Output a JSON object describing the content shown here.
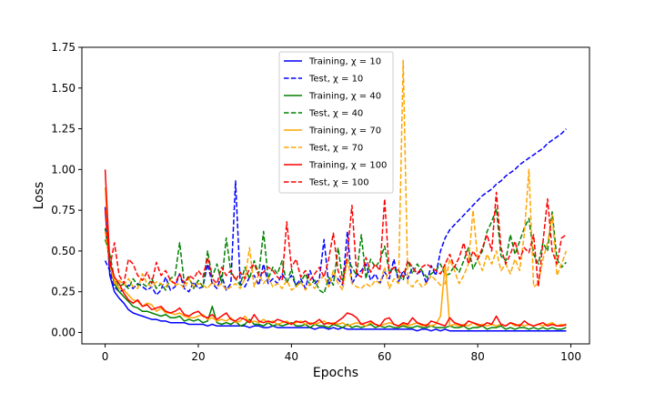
{
  "chart_data": {
    "type": "line",
    "xlabel": "Epochs",
    "ylabel": "Loss",
    "xlim": [
      -5,
      104
    ],
    "ylim": [
      -0.07,
      1.75
    ],
    "xticks": [
      0,
      20,
      40,
      60,
      80,
      100
    ],
    "yticks": [
      0.0,
      0.25,
      0.5,
      0.75,
      1.0,
      1.25,
      1.5,
      1.75
    ],
    "xtick_labels": [
      "0",
      "20",
      "40",
      "60",
      "80",
      "100"
    ],
    "ytick_labels": [
      "0.00",
      "0.25",
      "0.50",
      "0.75",
      "1.00",
      "1.25",
      "1.50",
      "1.75"
    ],
    "grid": false,
    "legend_position": "top-center",
    "x": [
      0,
      1,
      2,
      3,
      4,
      5,
      6,
      7,
      8,
      9,
      10,
      11,
      12,
      13,
      14,
      15,
      16,
      17,
      18,
      19,
      20,
      21,
      22,
      23,
      24,
      25,
      26,
      27,
      28,
      29,
      30,
      31,
      32,
      33,
      34,
      35,
      36,
      37,
      38,
      39,
      40,
      41,
      42,
      43,
      44,
      45,
      46,
      47,
      48,
      49,
      50,
      51,
      52,
      53,
      54,
      55,
      56,
      57,
      58,
      59,
      60,
      61,
      62,
      63,
      64,
      65,
      66,
      67,
      68,
      69,
      70,
      71,
      72,
      73,
      74,
      75,
      76,
      77,
      78,
      79,
      80,
      81,
      82,
      83,
      84,
      85,
      86,
      87,
      88,
      89,
      90,
      91,
      92,
      93,
      94,
      95,
      96,
      97,
      98,
      99
    ],
    "series": [
      {
        "name": "Training, χ = 10",
        "color": "#0000ff",
        "style": "solid",
        "values": [
          0.77,
          0.35,
          0.25,
          0.21,
          0.18,
          0.14,
          0.12,
          0.11,
          0.1,
          0.09,
          0.08,
          0.08,
          0.07,
          0.07,
          0.06,
          0.06,
          0.06,
          0.06,
          0.05,
          0.05,
          0.05,
          0.05,
          0.04,
          0.05,
          0.04,
          0.04,
          0.04,
          0.04,
          0.04,
          0.04,
          0.04,
          0.03,
          0.04,
          0.04,
          0.03,
          0.03,
          0.04,
          0.03,
          0.03,
          0.03,
          0.03,
          0.03,
          0.03,
          0.03,
          0.03,
          0.02,
          0.03,
          0.03,
          0.02,
          0.03,
          0.02,
          0.03,
          0.02,
          0.02,
          0.02,
          0.02,
          0.02,
          0.02,
          0.02,
          0.02,
          0.02,
          0.02,
          0.02,
          0.02,
          0.02,
          0.02,
          0.02,
          0.01,
          0.02,
          0.02,
          0.01,
          0.02,
          0.01,
          0.02,
          0.01,
          0.01,
          0.01,
          0.01,
          0.01,
          0.01,
          0.01,
          0.01,
          0.01,
          0.01,
          0.01,
          0.01,
          0.01,
          0.01,
          0.01,
          0.01,
          0.01,
          0.01,
          0.01,
          0.01,
          0.01,
          0.01,
          0.01,
          0.01,
          0.01,
          0.01
        ]
      },
      {
        "name": "Test, χ = 10",
        "color": "#0000ff",
        "style": "dashed",
        "values": [
          0.44,
          0.38,
          0.28,
          0.25,
          0.26,
          0.29,
          0.27,
          0.3,
          0.28,
          0.26,
          0.28,
          0.23,
          0.26,
          0.34,
          0.26,
          0.28,
          0.36,
          0.27,
          0.25,
          0.31,
          0.27,
          0.28,
          0.42,
          0.3,
          0.27,
          0.35,
          0.26,
          0.3,
          0.93,
          0.3,
          0.28,
          0.34,
          0.35,
          0.29,
          0.42,
          0.3,
          0.33,
          0.3,
          0.36,
          0.31,
          0.35,
          0.29,
          0.33,
          0.27,
          0.38,
          0.3,
          0.33,
          0.57,
          0.29,
          0.35,
          0.33,
          0.29,
          0.62,
          0.3,
          0.35,
          0.38,
          0.42,
          0.32,
          0.36,
          0.3,
          0.37,
          0.33,
          0.45,
          0.31,
          0.38,
          0.33,
          0.4,
          0.36,
          0.38,
          0.3,
          0.41,
          0.35,
          0.5,
          0.58,
          0.63,
          0.66,
          0.69,
          0.72,
          0.75,
          0.78,
          0.81,
          0.84,
          0.86,
          0.88,
          0.91,
          0.93,
          0.96,
          0.98,
          1.0,
          1.03,
          1.05,
          1.07,
          1.09,
          1.11,
          1.13,
          1.16,
          1.18,
          1.2,
          1.22,
          1.25
        ]
      },
      {
        "name": "Training, χ = 40",
        "color": "#008000",
        "style": "solid",
        "values": [
          0.64,
          0.42,
          0.3,
          0.25,
          0.22,
          0.19,
          0.16,
          0.15,
          0.13,
          0.13,
          0.12,
          0.11,
          0.1,
          0.11,
          0.09,
          0.09,
          0.1,
          0.07,
          0.08,
          0.07,
          0.08,
          0.06,
          0.07,
          0.16,
          0.06,
          0.05,
          0.06,
          0.05,
          0.07,
          0.04,
          0.05,
          0.08,
          0.05,
          0.05,
          0.04,
          0.06,
          0.04,
          0.05,
          0.04,
          0.05,
          0.06,
          0.04,
          0.04,
          0.05,
          0.03,
          0.05,
          0.04,
          0.04,
          0.03,
          0.05,
          0.04,
          0.03,
          0.05,
          0.03,
          0.04,
          0.03,
          0.04,
          0.05,
          0.03,
          0.04,
          0.03,
          0.04,
          0.03,
          0.03,
          0.04,
          0.03,
          0.03,
          0.04,
          0.03,
          0.03,
          0.04,
          0.03,
          0.03,
          0.03,
          0.04,
          0.03,
          0.03,
          0.04,
          0.02,
          0.03,
          0.03,
          0.04,
          0.02,
          0.03,
          0.03,
          0.04,
          0.02,
          0.03,
          0.02,
          0.03,
          0.03,
          0.02,
          0.03,
          0.02,
          0.03,
          0.02,
          0.03,
          0.02,
          0.02,
          0.03
        ]
      },
      {
        "name": "Test, χ = 40",
        "color": "#008000",
        "style": "dashed",
        "values": [
          0.57,
          0.48,
          0.33,
          0.28,
          0.3,
          0.27,
          0.33,
          0.29,
          0.3,
          0.28,
          0.33,
          0.27,
          0.3,
          0.26,
          0.33,
          0.35,
          0.55,
          0.3,
          0.34,
          0.27,
          0.32,
          0.28,
          0.5,
          0.34,
          0.42,
          0.3,
          0.58,
          0.37,
          0.33,
          0.29,
          0.4,
          0.33,
          0.44,
          0.36,
          0.62,
          0.33,
          0.4,
          0.36,
          0.44,
          0.3,
          0.39,
          0.28,
          0.31,
          0.36,
          0.29,
          0.32,
          0.26,
          0.24,
          0.34,
          0.29,
          0.52,
          0.32,
          0.45,
          0.4,
          0.35,
          0.6,
          0.33,
          0.45,
          0.4,
          0.44,
          0.53,
          0.37,
          0.4,
          0.35,
          0.32,
          0.44,
          0.36,
          0.42,
          0.38,
          0.34,
          0.36,
          0.38,
          0.42,
          0.35,
          0.36,
          0.41,
          0.37,
          0.44,
          0.52,
          0.39,
          0.45,
          0.5,
          0.62,
          0.68,
          0.76,
          0.47,
          0.44,
          0.6,
          0.48,
          0.56,
          0.64,
          0.7,
          0.48,
          0.42,
          0.55,
          0.5,
          0.74,
          0.45,
          0.4,
          0.43
        ]
      },
      {
        "name": "Training, χ = 70",
        "color": "#ffa500",
        "style": "solid",
        "values": [
          0.89,
          0.42,
          0.32,
          0.27,
          0.26,
          0.23,
          0.2,
          0.19,
          0.16,
          0.18,
          0.17,
          0.13,
          0.15,
          0.12,
          0.12,
          0.11,
          0.12,
          0.1,
          0.09,
          0.09,
          0.1,
          0.11,
          0.08,
          0.09,
          0.07,
          0.08,
          0.07,
          0.09,
          0.06,
          0.07,
          0.1,
          0.06,
          0.07,
          0.06,
          0.08,
          0.06,
          0.07,
          0.05,
          0.06,
          0.07,
          0.05,
          0.06,
          0.07,
          0.05,
          0.06,
          0.05,
          0.06,
          0.07,
          0.05,
          0.06,
          0.05,
          0.06,
          0.04,
          0.05,
          0.06,
          0.05,
          0.04,
          0.06,
          0.05,
          0.04,
          0.05,
          0.06,
          0.05,
          0.04,
          0.05,
          0.04,
          0.05,
          0.06,
          0.04,
          0.05,
          0.04,
          0.05,
          0.1,
          0.42,
          0.04,
          0.05,
          0.04,
          0.05,
          0.04,
          0.06,
          0.04,
          0.05,
          0.04,
          0.05,
          0.04,
          0.05,
          0.04,
          0.06,
          0.04,
          0.05,
          0.04,
          0.05,
          0.04,
          0.05,
          0.04,
          0.05,
          0.06,
          0.04,
          0.05,
          0.04
        ]
      },
      {
        "name": "Test, χ = 70",
        "color": "#ffa500",
        "style": "dashed",
        "values": [
          0.62,
          0.42,
          0.3,
          0.32,
          0.29,
          0.33,
          0.28,
          0.27,
          0.36,
          0.3,
          0.28,
          0.31,
          0.3,
          0.28,
          0.32,
          0.29,
          0.3,
          0.27,
          0.33,
          0.28,
          0.3,
          0.29,
          0.27,
          0.31,
          0.28,
          0.3,
          0.26,
          0.28,
          0.3,
          0.27,
          0.33,
          0.52,
          0.28,
          0.36,
          0.3,
          0.34,
          0.28,
          0.3,
          0.27,
          0.32,
          0.26,
          0.28,
          0.31,
          0.26,
          0.3,
          0.27,
          0.32,
          0.35,
          0.28,
          0.38,
          0.3,
          0.26,
          0.45,
          0.3,
          0.28,
          0.27,
          0.3,
          0.28,
          0.32,
          0.3,
          0.4,
          0.27,
          0.33,
          0.3,
          1.67,
          0.3,
          0.28,
          0.32,
          0.28,
          0.3,
          0.35,
          0.32,
          0.29,
          0.3,
          0.45,
          0.38,
          0.3,
          0.35,
          0.42,
          0.75,
          0.45,
          0.38,
          0.48,
          0.42,
          0.5,
          0.38,
          0.42,
          0.36,
          0.45,
          0.38,
          0.6,
          1.0,
          0.28,
          0.3,
          0.45,
          0.55,
          0.72,
          0.35,
          0.42,
          0.5
        ]
      },
      {
        "name": "Training, χ = 100",
        "color": "#ff0000",
        "style": "solid",
        "values": [
          1.0,
          0.43,
          0.34,
          0.3,
          0.24,
          0.2,
          0.18,
          0.2,
          0.16,
          0.17,
          0.14,
          0.15,
          0.16,
          0.13,
          0.12,
          0.13,
          0.15,
          0.11,
          0.1,
          0.12,
          0.13,
          0.1,
          0.09,
          0.11,
          0.08,
          0.1,
          0.12,
          0.08,
          0.07,
          0.09,
          0.08,
          0.06,
          0.11,
          0.07,
          0.06,
          0.07,
          0.06,
          0.08,
          0.07,
          0.06,
          0.05,
          0.07,
          0.06,
          0.07,
          0.05,
          0.06,
          0.08,
          0.05,
          0.06,
          0.05,
          0.07,
          0.09,
          0.12,
          0.11,
          0.09,
          0.05,
          0.06,
          0.07,
          0.05,
          0.04,
          0.08,
          0.09,
          0.05,
          0.04,
          0.06,
          0.05,
          0.09,
          0.06,
          0.05,
          0.04,
          0.07,
          0.06,
          0.05,
          0.04,
          0.09,
          0.06,
          0.05,
          0.04,
          0.07,
          0.06,
          0.05,
          0.04,
          0.06,
          0.05,
          0.1,
          0.05,
          0.04,
          0.06,
          0.05,
          0.04,
          0.07,
          0.05,
          0.04,
          0.05,
          0.06,
          0.04,
          0.05,
          0.04,
          0.04,
          0.05
        ]
      },
      {
        "name": "Test, χ = 100",
        "color": "#ff0000",
        "style": "dashed",
        "values": [
          0.75,
          0.4,
          0.55,
          0.35,
          0.3,
          0.45,
          0.42,
          0.35,
          0.32,
          0.37,
          0.3,
          0.43,
          0.35,
          0.38,
          0.32,
          0.3,
          0.36,
          0.3,
          0.35,
          0.33,
          0.38,
          0.34,
          0.46,
          0.33,
          0.3,
          0.4,
          0.35,
          0.38,
          0.32,
          0.37,
          0.33,
          0.39,
          0.42,
          0.35,
          0.37,
          0.4,
          0.38,
          0.34,
          0.32,
          0.68,
          0.4,
          0.45,
          0.34,
          0.38,
          0.32,
          0.36,
          0.4,
          0.34,
          0.45,
          0.61,
          0.38,
          0.3,
          0.48,
          0.78,
          0.36,
          0.34,
          0.46,
          0.37,
          0.42,
          0.38,
          0.82,
          0.36,
          0.4,
          0.38,
          0.34,
          0.44,
          0.4,
          0.36,
          0.4,
          0.42,
          0.4,
          0.38,
          0.36,
          0.42,
          0.48,
          0.4,
          0.46,
          0.55,
          0.42,
          0.5,
          0.45,
          0.52,
          0.6,
          0.5,
          0.86,
          0.52,
          0.42,
          0.48,
          0.56,
          0.45,
          0.52,
          0.49,
          0.6,
          0.28,
          0.55,
          0.82,
          0.5,
          0.42,
          0.58,
          0.6
        ]
      }
    ]
  }
}
